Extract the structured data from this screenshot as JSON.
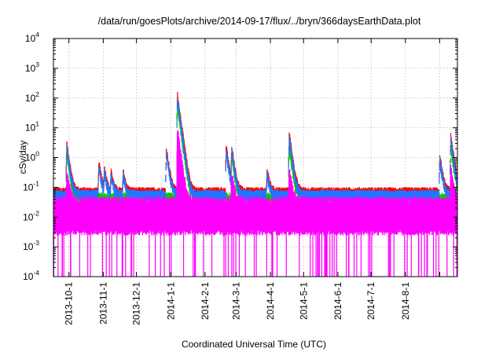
{
  "chart_data": {
    "type": "line",
    "title": "/data/run/goesPlots/archive/2014-09-17/flux/../bryn/366daysEarthData.plot",
    "xlabel": "Coordinated Universal Time (UTC)",
    "ylabel": "cSv/day",
    "yscale": "log",
    "ylim": [
      0.0001,
      10000
    ],
    "xlim": [
      "2013-09-17",
      "2014-09-17"
    ],
    "grid": true,
    "legend": "none",
    "y_ticks": [
      {
        "value": 0.0001,
        "base": "10",
        "exp": "-4"
      },
      {
        "value": 0.001,
        "base": "10",
        "exp": "-3"
      },
      {
        "value": 0.01,
        "base": "10",
        "exp": "-2"
      },
      {
        "value": 0.1,
        "base": "10",
        "exp": "-1"
      },
      {
        "value": 1,
        "base": "10",
        "exp": "0"
      },
      {
        "value": 10,
        "base": "10",
        "exp": "1"
      },
      {
        "value": 100,
        "base": "10",
        "exp": "2"
      },
      {
        "value": 1000,
        "base": "10",
        "exp": "3"
      },
      {
        "value": 10000,
        "base": "10",
        "exp": "4"
      }
    ],
    "x_ticks": [
      {
        "date": "2013-10-01",
        "label": "2013-10-1"
      },
      {
        "date": "2013-11-01",
        "label": "2013-11-1"
      },
      {
        "date": "2013-12-01",
        "label": "2013-12-1"
      },
      {
        "date": "2014-01-01",
        "label": "2014-1-1"
      },
      {
        "date": "2014-02-01",
        "label": "2014-2-1"
      },
      {
        "date": "2014-03-01",
        "label": "2014-3-1"
      },
      {
        "date": "2014-04-01",
        "label": "2014-4-1"
      },
      {
        "date": "2014-05-01",
        "label": "2014-5-1"
      },
      {
        "date": "2014-06-01",
        "label": "2014-6-1"
      },
      {
        "date": "2014-07-01",
        "label": "2014-7-1"
      },
      {
        "date": "2014-08-01",
        "label": "2014-8-1"
      },
      {
        "date": "2014-09-01",
        "label": ""
      }
    ],
    "series": [
      {
        "color": "#ff0000",
        "baseline": 0.075,
        "peaks": [
          {
            "date": "2013-09-29",
            "value": 3.0
          },
          {
            "date": "2013-10-28",
            "value": 0.7
          },
          {
            "date": "2013-11-02",
            "value": 0.45
          },
          {
            "date": "2013-11-08",
            "value": 0.35
          },
          {
            "date": "2013-11-19",
            "value": 0.35
          },
          {
            "date": "2013-12-28",
            "value": 2.0
          },
          {
            "date": "2014-01-07",
            "value": 130
          },
          {
            "date": "2014-02-20",
            "value": 2.5
          },
          {
            "date": "2014-02-25",
            "value": 2.3
          },
          {
            "date": "2014-03-29",
            "value": 0.4
          },
          {
            "date": "2014-04-18",
            "value": 6.5
          },
          {
            "date": "2014-09-01",
            "value": 1.2
          },
          {
            "date": "2014-09-11",
            "value": 5.5
          }
        ]
      },
      {
        "color": "#00cc00",
        "baseline": 0.05,
        "peaks": [
          {
            "date": "2013-09-29",
            "value": 1.5
          },
          {
            "date": "2014-01-07",
            "value": 60
          },
          {
            "date": "2014-02-25",
            "value": 1.2
          },
          {
            "date": "2014-04-18",
            "value": 2.5
          },
          {
            "date": "2014-09-11",
            "value": 2.5
          }
        ]
      },
      {
        "color": "#1e78ff",
        "baseline": 0.062,
        "peaks": [
          {
            "date": "2013-09-29",
            "value": 2.2
          },
          {
            "date": "2013-10-28",
            "value": 0.55
          },
          {
            "date": "2013-11-02",
            "value": 0.35
          },
          {
            "date": "2013-11-08",
            "value": 0.28
          },
          {
            "date": "2013-11-19",
            "value": 0.28
          },
          {
            "date": "2013-12-28",
            "value": 1.5
          },
          {
            "date": "2014-01-07",
            "value": 95
          },
          {
            "date": "2014-02-20",
            "value": 1.8
          },
          {
            "date": "2014-02-25",
            "value": 1.8
          },
          {
            "date": "2014-03-29",
            "value": 0.3
          },
          {
            "date": "2014-04-18",
            "value": 4.5
          },
          {
            "date": "2014-09-01",
            "value": 0.9
          },
          {
            "date": "2014-09-11",
            "value": 4.0
          }
        ]
      },
      {
        "color": "#ff00ff",
        "baseline": 0.03,
        "floor": 0.003,
        "peaks": [
          {
            "date": "2013-09-29",
            "value": 0.3
          },
          {
            "date": "2014-01-07",
            "value": 8.0
          },
          {
            "date": "2014-02-25",
            "value": 0.25
          },
          {
            "date": "2014-04-18",
            "value": 0.4
          },
          {
            "date": "2014-09-11",
            "value": 0.35
          }
        ]
      }
    ]
  }
}
